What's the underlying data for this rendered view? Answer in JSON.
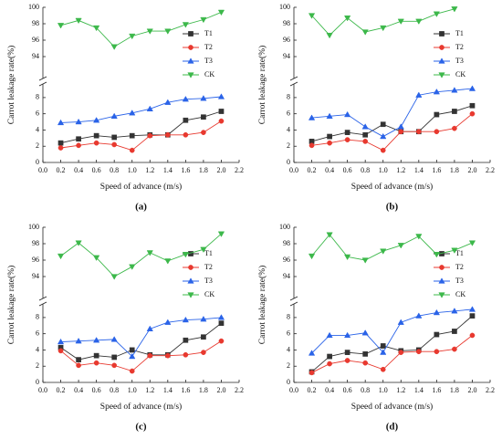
{
  "chart_data": [
    {
      "type": "line",
      "panel_label": "(a)",
      "x_label": "Speed of advance (m/s)",
      "y_label": "Carrot leakage rate(%)",
      "broken_axis": true,
      "legend": "right",
      "x": [
        0.2,
        0.4,
        0.6,
        0.8,
        1.0,
        1.2,
        1.4,
        1.6,
        1.8,
        2.0
      ],
      "xlim": [
        0,
        2.2
      ],
      "xticks": [
        {
          "value": 0,
          "label": "0.0"
        },
        0.2,
        0.4,
        0.6,
        0.8,
        {
          "value": 1,
          "label": "1.0"
        },
        1.2,
        1.4,
        1.6,
        1.8,
        {
          "value": 2,
          "label": "2.0"
        },
        2.2
      ],
      "ylim": [
        0,
        9
      ],
      "yticks": [
        0,
        2,
        4,
        6,
        8
      ],
      "y2lim": [
        92,
        100
      ],
      "y2ticks": [
        94,
        96,
        98,
        100
      ],
      "series": [
        {
          "name": "T1",
          "color": "#333333",
          "marker": "square",
          "values": [
            2.4,
            2.9,
            3.3,
            3.1,
            3.3,
            3.4,
            3.4,
            5.2,
            5.6,
            6.3
          ]
        },
        {
          "name": "T2",
          "color": "#e8392f",
          "marker": "circle",
          "values": [
            1.8,
            2.1,
            2.4,
            2.2,
            1.5,
            3.3,
            3.4,
            3.4,
            3.7,
            5.1
          ]
        },
        {
          "name": "T3",
          "color": "#2a63e8",
          "marker": "triangle-up",
          "values": [
            4.9,
            5.0,
            5.2,
            5.7,
            6.1,
            6.6,
            7.4,
            7.8,
            7.9,
            8.1
          ]
        },
        {
          "name": "CK",
          "color": "#3cb84a",
          "marker": "triangle-down",
          "axis": "y2",
          "values": [
            97.8,
            98.4,
            97.5,
            95.2,
            96.5,
            97.1,
            97.1,
            97.9,
            98.5,
            99.4
          ]
        }
      ]
    },
    {
      "type": "line",
      "panel_label": "(b)",
      "x_label": "Speed of advance (m/s)",
      "y_label": "Carrot leakage rate(%)",
      "broken_axis": true,
      "legend": "right",
      "x": [
        0.2,
        0.4,
        0.6,
        0.8,
        1.0,
        1.2,
        1.4,
        1.6,
        1.8,
        2.0
      ],
      "xlim": [
        0,
        2.2
      ],
      "xticks": [
        {
          "value": 0,
          "label": "0.0"
        },
        0.2,
        0.4,
        0.6,
        0.8,
        {
          "value": 1,
          "label": "1.0"
        },
        1.2,
        1.4,
        1.6,
        1.8,
        {
          "value": 2,
          "label": "2.0"
        },
        2.2
      ],
      "ylim": [
        0,
        9
      ],
      "yticks": [
        0,
        2,
        4,
        6,
        8
      ],
      "y2lim": [
        92,
        100
      ],
      "y2ticks": [
        94,
        96,
        98,
        100
      ],
      "series": [
        {
          "name": "T1",
          "color": "#333333",
          "marker": "square",
          "values": [
            2.6,
            3.2,
            3.7,
            3.4,
            4.7,
            3.8,
            3.8,
            5.9,
            6.3,
            7.0
          ]
        },
        {
          "name": "T2",
          "color": "#e8392f",
          "marker": "circle",
          "values": [
            2.1,
            2.4,
            2.8,
            2.6,
            1.5,
            3.8,
            3.8,
            3.8,
            4.2,
            6.0
          ]
        },
        {
          "name": "T3",
          "color": "#2a63e8",
          "marker": "triangle-up",
          "values": [
            5.5,
            5.7,
            5.9,
            4.4,
            3.2,
            4.4,
            8.3,
            8.7,
            8.9,
            9.1
          ]
        },
        {
          "name": "CK",
          "color": "#3cb84a",
          "marker": "triangle-down",
          "axis": "y2",
          "values": [
            99.0,
            96.6,
            98.7,
            97.0,
            97.5,
            98.3,
            98.3,
            99.2,
            99.8,
            null
          ]
        }
      ]
    },
    {
      "type": "line",
      "panel_label": "(c)",
      "x_label": "Speed of advance (m/s)",
      "y_label": "Carrot leakage rate(%)",
      "broken_axis": true,
      "legend": "right",
      "x": [
        0.2,
        0.4,
        0.6,
        0.8,
        1.0,
        1.2,
        1.4,
        1.6,
        1.8,
        2.0
      ],
      "xlim": [
        0,
        2.2
      ],
      "xticks": [
        {
          "value": 0,
          "label": "0.0"
        },
        0.2,
        0.4,
        0.6,
        0.8,
        {
          "value": 1,
          "label": "1.0"
        },
        1.2,
        1.4,
        1.6,
        1.8,
        {
          "value": 2,
          "label": "2.0"
        },
        2.2
      ],
      "ylim": [
        0,
        9
      ],
      "yticks": [
        0,
        2,
        4,
        6,
        8
      ],
      "y2lim": [
        92,
        100
      ],
      "y2ticks": [
        94,
        96,
        98,
        100
      ],
      "series": [
        {
          "name": "T1",
          "color": "#333333",
          "marker": "square",
          "values": [
            4.3,
            2.8,
            3.3,
            3.1,
            4.0,
            3.4,
            3.4,
            5.2,
            5.6,
            7.3
          ]
        },
        {
          "name": "T2",
          "color": "#e8392f",
          "marker": "circle",
          "values": [
            3.9,
            2.1,
            2.4,
            2.1,
            1.4,
            3.3,
            3.3,
            3.4,
            3.7,
            5.1
          ]
        },
        {
          "name": "T3",
          "color": "#2a63e8",
          "marker": "triangle-up",
          "values": [
            5.0,
            5.1,
            5.2,
            5.3,
            3.2,
            6.6,
            7.4,
            7.7,
            7.8,
            8.0
          ]
        },
        {
          "name": "CK",
          "color": "#3cb84a",
          "marker": "triangle-down",
          "axis": "y2",
          "values": [
            96.5,
            98.1,
            96.3,
            94.0,
            95.2,
            96.9,
            95.9,
            96.7,
            97.3,
            99.2
          ]
        }
      ]
    },
    {
      "type": "line",
      "panel_label": "(d)",
      "x_label": "Speed of advance (m/s)",
      "y_label": "Carrot leakage rate(%)",
      "broken_axis": true,
      "legend": "right",
      "x": [
        0.2,
        0.4,
        0.6,
        0.8,
        1.0,
        1.2,
        1.4,
        1.6,
        1.8,
        2.0
      ],
      "xlim": [
        0,
        2.2
      ],
      "xticks": [
        {
          "value": 0,
          "label": "0.0"
        },
        0.2,
        0.4,
        0.6,
        0.8,
        {
          "value": 1,
          "label": "1.0"
        },
        1.2,
        1.4,
        1.6,
        1.8,
        {
          "value": 2,
          "label": "2.0"
        },
        2.2
      ],
      "ylim": [
        0,
        9
      ],
      "yticks": [
        0,
        2,
        4,
        6,
        8
      ],
      "y2lim": [
        92,
        100
      ],
      "y2ticks": [
        94,
        96,
        98,
        100
      ],
      "series": [
        {
          "name": "T1",
          "color": "#333333",
          "marker": "square",
          "values": [
            1.3,
            3.2,
            3.7,
            3.5,
            4.5,
            3.9,
            4.0,
            5.9,
            6.3,
            8.2
          ]
        },
        {
          "name": "T2",
          "color": "#e8392f",
          "marker": "circle",
          "values": [
            1.2,
            2.3,
            2.7,
            2.4,
            1.6,
            3.7,
            3.8,
            3.8,
            4.1,
            5.8
          ]
        },
        {
          "name": "T3",
          "color": "#2a63e8",
          "marker": "triangle-up",
          "values": [
            3.6,
            5.8,
            5.8,
            6.1,
            3.7,
            7.4,
            8.2,
            8.6,
            8.8,
            9.0
          ]
        },
        {
          "name": "CK",
          "color": "#3cb84a",
          "marker": "triangle-down",
          "axis": "y2",
          "values": [
            96.5,
            99.1,
            96.4,
            96.0,
            97.1,
            97.8,
            98.9,
            96.7,
            97.2,
            98.1
          ]
        }
      ]
    }
  ]
}
